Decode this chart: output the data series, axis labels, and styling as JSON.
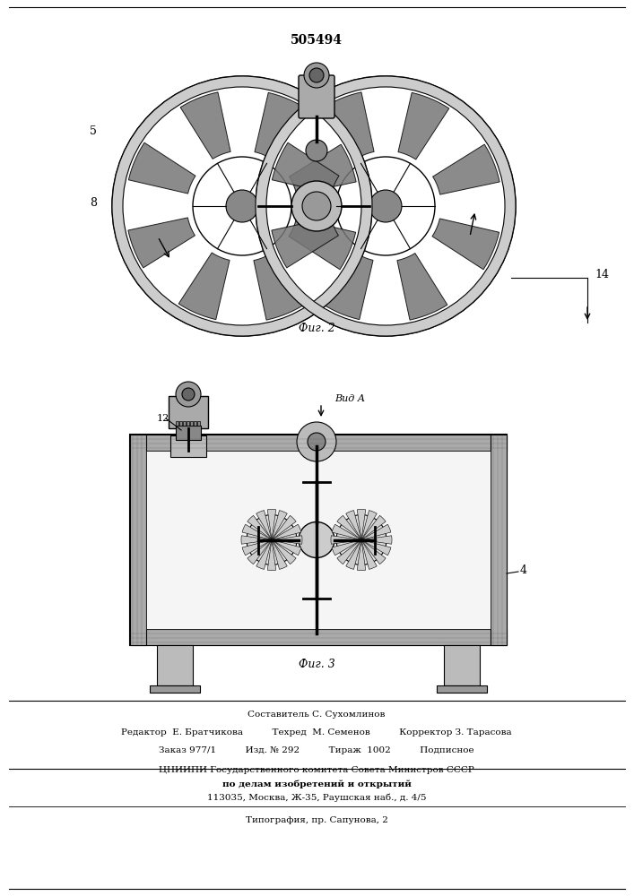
{
  "patent_number": "505494",
  "background_color": "#ffffff",
  "title_fontsize": 10,
  "body_fontsize": 7,
  "footer_lines": [
    "Составитель С. Сухомлинов",
    "Редактор  Е. Братчикова          Техред  М. Семенов          Корректор З. Тарасова",
    "Заказ 977/1          Изд. № 292          Тираж  1002          Подписное",
    "ЦНИИПИ Государственного комитета Совета Министров СССР",
    "по делам изобретений и открытий",
    "113035, Москва, Ж-35, Раушская наб., д. 4/5",
    "Типография, пр. Сапунова, 2"
  ],
  "fig2_label": "Фиг. 2",
  "fig3_label": "Фиг. 3",
  "view_label": "Вид А",
  "label_5": "5",
  "label_8": "8",
  "label_14": "14",
  "label_12": "12",
  "label_4": "4"
}
